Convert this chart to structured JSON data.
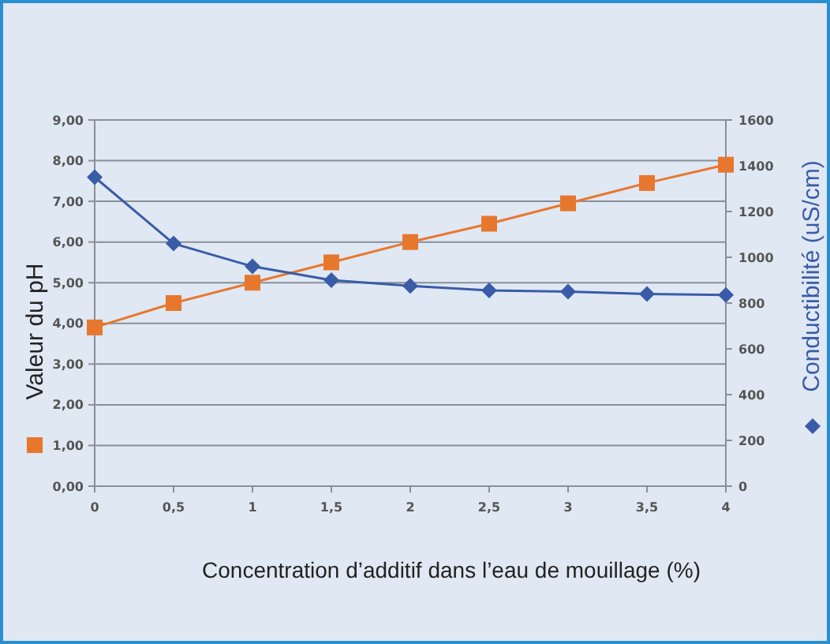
{
  "chart_data": {
    "type": "line",
    "xlabel": "Concentration d’additif dans l’eau de mouillage (%)",
    "ylabel": "Valeur du pH",
    "y2label": "Conductibilité (uS/cm)",
    "categories": [
      "0",
      "0,5",
      "1",
      "1,5",
      "2",
      "2,5",
      "3",
      "3,5",
      "4"
    ],
    "series": [
      {
        "color": "#e8772e",
        "marker": "square",
        "values": [
          3.9,
          4.5,
          5.0,
          5.5,
          6.0,
          6.45,
          6.95,
          7.45,
          7.9
        ]
      },
      {
        "color": "#3a5ba8",
        "marker": "diamond",
        "axis": "y2",
        "values": [
          1350,
          1060,
          960,
          900,
          875,
          855,
          850,
          840,
          835
        ]
      }
    ],
    "ylim": [
      0,
      9
    ],
    "yticks": [
      {
        "value": 0,
        "label": "0,00"
      },
      {
        "value": 1,
        "label": "1,00"
      },
      {
        "value": 2,
        "label": "2,00"
      },
      {
        "value": 3,
        "label": "3,00"
      },
      {
        "value": 4,
        "label": "4,00"
      },
      {
        "value": 5,
        "label": "5,00"
      },
      {
        "value": 6,
        "label": "6,00"
      },
      {
        "value": 7,
        "label": "7,00"
      },
      {
        "value": 8,
        "label": "8,00"
      },
      {
        "value": 9,
        "label": "9,00"
      }
    ],
    "y2lim": [
      0,
      1600
    ],
    "y2ticks": [
      0,
      200,
      400,
      600,
      800,
      1000,
      1200,
      1400,
      1600
    ],
    "grid": "y"
  }
}
